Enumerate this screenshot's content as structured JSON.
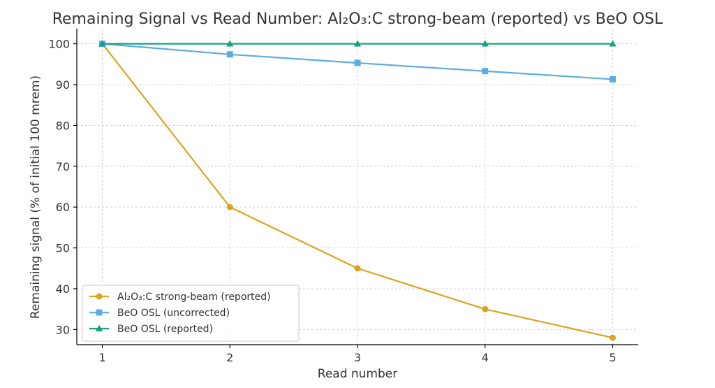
{
  "chart_data": {
    "type": "line",
    "title": "Remaining Signal vs Read Number: Al₂O₃:C strong-beam (reported) vs BeO OSL",
    "xlabel": "Read number",
    "ylabel": "Remaining signal (% of initial 100 mrem)",
    "x": [
      1,
      2,
      3,
      4,
      5
    ],
    "x_tick_labels": [
      "1",
      "2",
      "3",
      "4",
      "5"
    ],
    "xlim": [
      0.8,
      5.2
    ],
    "ylim": [
      26.3,
      103.7
    ],
    "y_ticks": [
      30,
      40,
      50,
      60,
      70,
      80,
      90,
      100
    ],
    "y_tick_labels": [
      "30",
      "40",
      "50",
      "60",
      "70",
      "80",
      "90",
      "100"
    ],
    "grid": true,
    "legend_position": "lower-left",
    "series": [
      {
        "name": "Al₂O₃:C strong-beam (reported)",
        "values": [
          100,
          60,
          45,
          35,
          28
        ],
        "color": "#DAA520",
        "marker": "circle"
      },
      {
        "name": "BeO OSL (uncorrected)",
        "values": [
          100,
          97.4,
          95.3,
          93.3,
          91.3
        ],
        "color": "#5DADE2",
        "marker": "square"
      },
      {
        "name": "BeO OSL (reported)",
        "values": [
          100,
          100,
          100,
          100,
          100
        ],
        "color": "#16A085",
        "marker": "triangle"
      }
    ]
  }
}
